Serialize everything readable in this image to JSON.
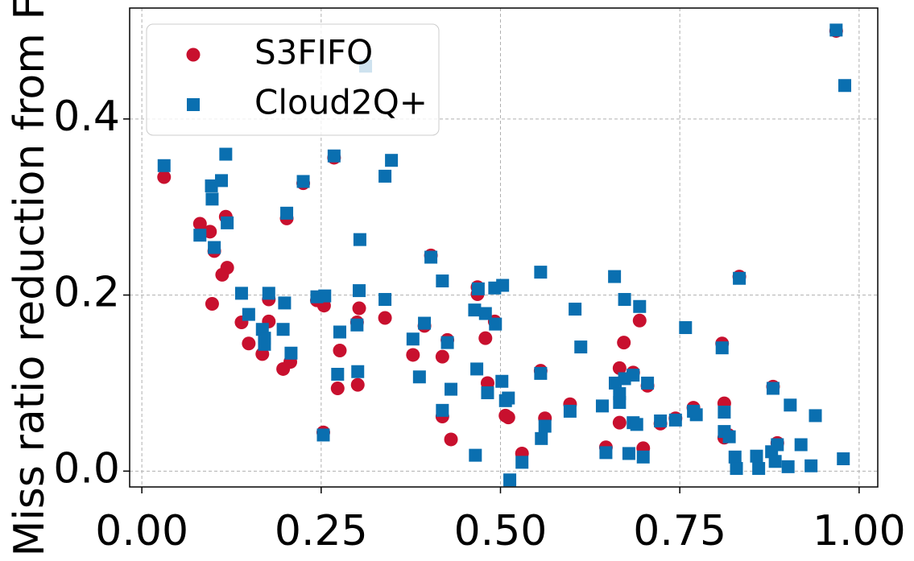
{
  "chart_data": {
    "type": "scatter",
    "y_label": "Miss ratio reduction from FIFO",
    "xlim": [
      -0.017,
      1.026
    ],
    "ylim": [
      -0.018,
      0.526
    ],
    "xticks": [
      {
        "value": 0,
        "label": "0.00"
      },
      {
        "value": 0.25,
        "label": "0.25"
      },
      {
        "value": 0.5,
        "label": "0.50"
      },
      {
        "value": 0.75,
        "label": "0.75"
      },
      {
        "value": 1,
        "label": "1.00"
      }
    ],
    "yticks": [
      {
        "value": 0,
        "label": "0.0"
      },
      0.2,
      0.4
    ],
    "grid": true,
    "legend": "upper left",
    "series": [
      {
        "name": "S3FIFO",
        "color": "#c8102e",
        "marker": "circle",
        "x": [
          0.031,
          0.081,
          0.095,
          0.101,
          0.098,
          0.117,
          0.119,
          0.112,
          0.139,
          0.149,
          0.168,
          0.177,
          0.177,
          0.197,
          0.207,
          0.202,
          0.225,
          0.244,
          0.254,
          0.253,
          0.268,
          0.273,
          0.276,
          0.3,
          0.301,
          0.303,
          0.339,
          0.378,
          0.394,
          0.403,
          0.419,
          0.419,
          0.426,
          0.431,
          0.468,
          0.468,
          0.479,
          0.482,
          0.492,
          0.507,
          0.511,
          0.53,
          0.556,
          0.562,
          0.597,
          0.647,
          0.666,
          0.666,
          0.672,
          0.685,
          0.694,
          0.699,
          0.705,
          0.723,
          0.744,
          0.769,
          0.809,
          0.812,
          0.812,
          0.818,
          0.833,
          0.88,
          0.886,
          0.968
        ],
        "y": [
          0.334,
          0.281,
          0.272,
          0.25,
          0.19,
          0.289,
          0.231,
          0.223,
          0.169,
          0.145,
          0.133,
          0.17,
          0.195,
          0.116,
          0.124,
          0.287,
          0.327,
          0.194,
          0.188,
          0.044,
          0.356,
          0.094,
          0.137,
          0.169,
          0.098,
          0.185,
          0.174,
          0.132,
          0.165,
          0.245,
          0.13,
          0.062,
          0.149,
          0.036,
          0.201,
          0.209,
          0.151,
          0.1,
          0.17,
          0.063,
          0.061,
          0.02,
          0.114,
          0.06,
          0.076,
          0.027,
          0.117,
          0.055,
          0.146,
          0.112,
          0.171,
          0.026,
          0.097,
          0.054,
          0.06,
          0.072,
          0.145,
          0.077,
          0.038,
          0.041,
          0.221,
          0.096,
          0.032,
          0.5
        ]
      },
      {
        "name": "Cloud2Q+",
        "color": "#0a6fb0",
        "marker": "square",
        "x": [
          0.031,
          0.081,
          0.097,
          0.098,
          0.101,
          0.111,
          0.117,
          0.119,
          0.139,
          0.149,
          0.168,
          0.171,
          0.171,
          0.177,
          0.197,
          0.199,
          0.202,
          0.208,
          0.225,
          0.244,
          0.255,
          0.253,
          0.268,
          0.273,
          0.276,
          0.3,
          0.301,
          0.304,
          0.303,
          0.312,
          0.339,
          0.339,
          0.348,
          0.378,
          0.387,
          0.394,
          0.403,
          0.419,
          0.419,
          0.426,
          0.431,
          0.464,
          0.465,
          0.467,
          0.469,
          0.479,
          0.482,
          0.492,
          0.493,
          0.503,
          0.502,
          0.507,
          0.511,
          0.513,
          0.53,
          0.556,
          0.556,
          0.557,
          0.562,
          0.597,
          0.604,
          0.612,
          0.642,
          0.647,
          0.659,
          0.66,
          0.666,
          0.666,
          0.673,
          0.673,
          0.679,
          0.685,
          0.685,
          0.69,
          0.694,
          0.699,
          0.705,
          0.723,
          0.744,
          0.758,
          0.769,
          0.773,
          0.809,
          0.812,
          0.812,
          0.819,
          0.827,
          0.829,
          0.833,
          0.857,
          0.86,
          0.878,
          0.88,
          0.883,
          0.886,
          0.901,
          0.904,
          0.919,
          0.933,
          0.939,
          0.968,
          0.98,
          0.978
        ],
        "y": [
          0.347,
          0.268,
          0.324,
          0.309,
          0.254,
          0.33,
          0.36,
          0.282,
          0.202,
          0.178,
          0.161,
          0.151,
          0.144,
          0.202,
          0.161,
          0.191,
          0.293,
          0.134,
          0.329,
          0.198,
          0.199,
          0.041,
          0.358,
          0.11,
          0.158,
          0.166,
          0.113,
          0.263,
          0.205,
          0.46,
          0.335,
          0.195,
          0.353,
          0.15,
          0.107,
          0.168,
          0.243,
          0.216,
          0.069,
          0.146,
          0.093,
          0.183,
          0.018,
          0.116,
          0.207,
          0.179,
          0.089,
          0.208,
          0.167,
          0.211,
          0.102,
          0.08,
          0.083,
          -0.01,
          0.01,
          0.226,
          0.111,
          0.037,
          0.051,
          0.068,
          0.184,
          0.141,
          0.074,
          0.021,
          0.221,
          0.1,
          0.088,
          0.078,
          0.195,
          0.105,
          0.02,
          0.109,
          0.055,
          0.053,
          0.187,
          0.016,
          0.1,
          0.057,
          0.058,
          0.163,
          0.068,
          0.064,
          0.14,
          0.067,
          0.045,
          0.039,
          0.016,
          0.003,
          0.219,
          0.017,
          0.003,
          0.022,
          0.094,
          0.011,
          0.03,
          0.005,
          0.075,
          0.03,
          0.006,
          0.063,
          0.501,
          0.438,
          0.014
        ]
      }
    ]
  }
}
